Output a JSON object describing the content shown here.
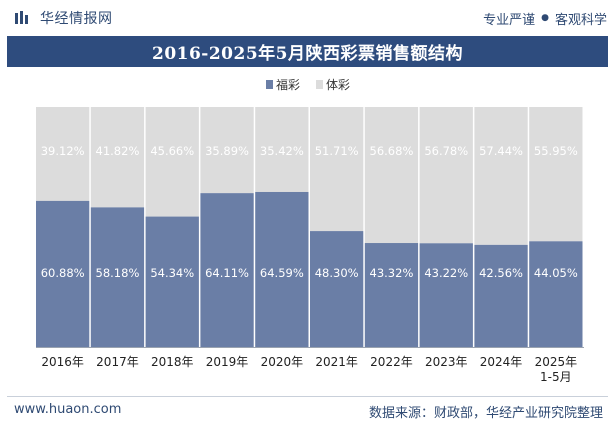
{
  "header": {
    "brand": "华经情报网",
    "slogan_a": "专业严谨",
    "slogan_sep": "●",
    "slogan_b": "客观科学"
  },
  "footer": {
    "website": "www.huaon.com",
    "source": "数据来源：财政部，华经产业研究院整理"
  },
  "colors": {
    "fucai": "#6a7ea6",
    "ticai": "#dcdcdc",
    "title_bg": "#2e4c7e",
    "brand": "#2f4a73"
  },
  "chart_data": {
    "type": "bar",
    "stacked": true,
    "percent_stacked": true,
    "title": "2016-2025年5月陕西彩票销售额结构",
    "categories": [
      "2016年",
      "2017年",
      "2018年",
      "2019年",
      "2020年",
      "2021年",
      "2022年",
      "2023年",
      "2024年",
      "2025年\n1-5月"
    ],
    "series": [
      {
        "name": "福彩",
        "values": [
          60.88,
          58.18,
          54.34,
          64.11,
          64.59,
          48.3,
          43.32,
          43.22,
          42.56,
          44.05
        ],
        "labels": [
          "60.88%",
          "58.18%",
          "54.34%",
          "64.11%",
          "64.59%",
          "48.30%",
          "43.32%",
          "43.22%",
          "42.56%",
          "44.05%"
        ]
      },
      {
        "name": "体彩",
        "values": [
          39.12,
          41.82,
          45.66,
          35.89,
          35.42,
          51.71,
          56.68,
          56.78,
          57.44,
          55.95
        ],
        "labels": [
          "39.12%",
          "41.82%",
          "45.66%",
          "35.89%",
          "35.42%",
          "51.71%",
          "56.68%",
          "56.78%",
          "57.44%",
          "55.95%"
        ]
      }
    ],
    "ylim": [
      0,
      100
    ],
    "xlabel": "",
    "ylabel": "",
    "legend": "top-center",
    "grid": false
  }
}
